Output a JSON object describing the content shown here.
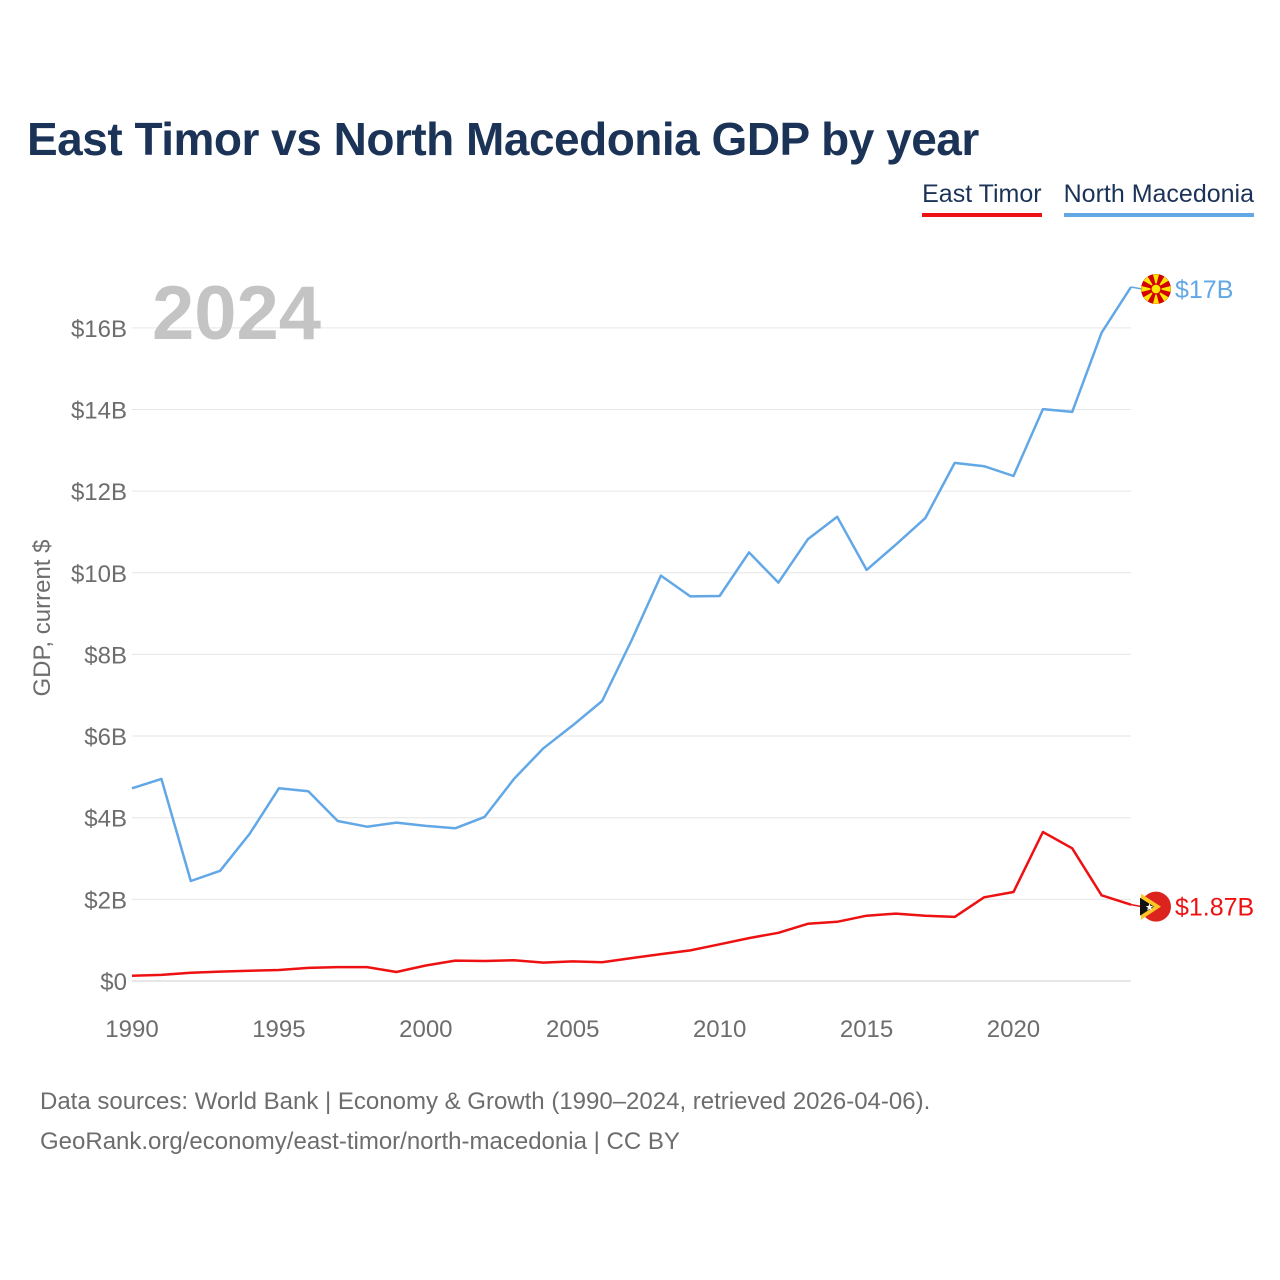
{
  "header": {
    "title": "East Timor vs North Macedonia GDP by year"
  },
  "legend": [
    {
      "label": "East Timor",
      "color": "#ee1111"
    },
    {
      "label": "North Macedonia",
      "color": "#62a7e6"
    }
  ],
  "chart_data": {
    "type": "line",
    "title": "East Timor vs North Macedonia GDP by year",
    "ylabel": "GDP, current $",
    "xlabel": "",
    "year_watermark": "2024",
    "xlim": [
      1990,
      2024
    ],
    "ylim": [
      0,
      17
    ],
    "yticks": [
      {
        "value": 0,
        "label": "$0"
      },
      {
        "value": 2,
        "label": "$2B"
      },
      {
        "value": 4,
        "label": "$4B"
      },
      {
        "value": 6,
        "label": "$6B"
      },
      {
        "value": 8,
        "label": "$8B"
      },
      {
        "value": 10,
        "label": "$10B"
      },
      {
        "value": 12,
        "label": "$12B"
      },
      {
        "value": 14,
        "label": "$14B"
      },
      {
        "value": 16,
        "label": "$16B"
      }
    ],
    "xticks": [
      {
        "value": 1990,
        "label": "1990"
      },
      {
        "value": 1995,
        "label": "1995"
      },
      {
        "value": 2000,
        "label": "2000"
      },
      {
        "value": 2005,
        "label": "2005"
      },
      {
        "value": 2010,
        "label": "2010"
      },
      {
        "value": 2015,
        "label": "2015"
      },
      {
        "value": 2020,
        "label": "2020"
      }
    ],
    "x": [
      1990,
      1991,
      1992,
      1993,
      1994,
      1995,
      1996,
      1997,
      1998,
      1999,
      2000,
      2001,
      2002,
      2003,
      2004,
      2005,
      2006,
      2007,
      2008,
      2009,
      2010,
      2011,
      2012,
      2013,
      2014,
      2015,
      2016,
      2017,
      2018,
      2019,
      2020,
      2021,
      2022,
      2023,
      2024
    ],
    "series": [
      {
        "name": "East Timor",
        "color": "#ee1111",
        "end_label": "$1.87B",
        "flag": "east-timor",
        "values": [
          0.13,
          0.15,
          0.2,
          0.23,
          0.25,
          0.27,
          0.32,
          0.34,
          0.34,
          0.22,
          0.38,
          0.5,
          0.49,
          0.51,
          0.45,
          0.48,
          0.46,
          0.56,
          0.66,
          0.75,
          0.9,
          1.05,
          1.18,
          1.4,
          1.45,
          1.6,
          1.65,
          1.6,
          1.57,
          2.05,
          2.18,
          3.65,
          3.25,
          2.1,
          1.87
        ]
      },
      {
        "name": "North Macedonia",
        "color": "#62a7e6",
        "end_label": "$17B",
        "flag": "north-macedonia",
        "values": [
          4.72,
          4.95,
          2.45,
          2.7,
          3.6,
          4.72,
          4.65,
          3.92,
          3.78,
          3.88,
          3.8,
          3.74,
          4.02,
          4.95,
          5.7,
          6.26,
          6.86,
          8.34,
          9.93,
          9.42,
          9.43,
          10.5,
          9.76,
          10.82,
          11.37,
          10.07,
          10.69,
          11.34,
          12.69,
          12.61,
          12.37,
          14.01,
          13.94,
          15.88,
          17.0
        ]
      }
    ]
  },
  "footer": {
    "source_line": "Data sources: World Bank | Economy & Growth (1990–2024, retrieved 2026-04-06).",
    "credit_line": "GeoRank.org/economy/east-timor/north-macedonia | CC BY"
  }
}
